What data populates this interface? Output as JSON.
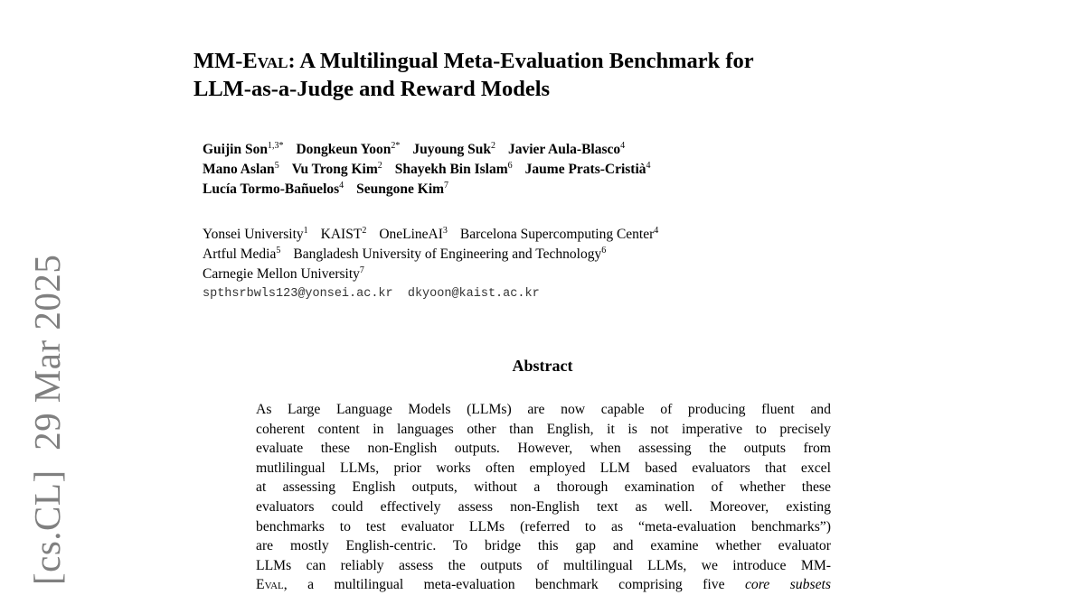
{
  "sidebar": {
    "arxiv_stamp": "[cs.CL]  29 Mar 2025"
  },
  "title": {
    "line1_prefix": "MM-",
    "line1_sc": "Eval",
    "line1_rest": ": A Multilingual Meta-Evaluation Benchmark for",
    "line2": "LLM-as-a-Judge and Reward Models"
  },
  "authors": [
    [
      {
        "name": "Guijin Son",
        "sup": "1,3*"
      },
      {
        "name": "Dongkeun Yoon",
        "sup": "2*"
      },
      {
        "name": "Juyoung Suk",
        "sup": "2"
      },
      {
        "name": "Javier Aula-Blasco",
        "sup": "4"
      }
    ],
    [
      {
        "name": "Mano Aslan",
        "sup": "5"
      },
      {
        "name": "Vu Trong Kim",
        "sup": "2"
      },
      {
        "name": "Shayekh Bin Islam",
        "sup": "6"
      },
      {
        "name": "Jaume Prats-Cristià",
        "sup": "4"
      }
    ],
    [
      {
        "name": "Lucía Tormo-Bañuelos",
        "sup": "4"
      },
      {
        "name": "Seungone Kim",
        "sup": "7"
      }
    ]
  ],
  "affiliations": [
    [
      {
        "name": "Yonsei University",
        "sup": "1"
      },
      {
        "name": "KAIST",
        "sup": "2"
      },
      {
        "name": "OneLineAI",
        "sup": "3"
      },
      {
        "name": "Barcelona Supercomputing Center",
        "sup": "4"
      }
    ],
    [
      {
        "name": "Artful Media",
        "sup": "5"
      },
      {
        "name": "Bangladesh University of Engineering and Technology",
        "sup": "6"
      }
    ],
    [
      {
        "name": "Carnegie Mellon University",
        "sup": "7"
      }
    ]
  ],
  "emails": [
    "spthsrbwls123@yonsei.ac.kr",
    "dkyoon@kaist.ac.kr"
  ],
  "abstract": {
    "heading": "Abstract",
    "lines": [
      "As Large Language Models (LLMs) are now capable of producing fluent and",
      "coherent content in languages other than English, it is not imperative to precisely",
      "evaluate these non-English outputs. However, when assessing the outputs from",
      "mutlilingual LLMs, prior works often employed LLM based evaluators that excel",
      "at assessing English outputs, without a thorough examination of whether these",
      "evaluators could effectively assess non-English text as well. Moreover, existing",
      "benchmarks to test evaluator LLMs (referred to as “meta-evaluation benchmarks”)",
      "are mostly English-centric. To bridge this gap and examine whether evaluator",
      "LLMs can reliably assess the outputs of multilingual LLMs, we introduce MM-"
    ],
    "last_line_sc": "Eval",
    "last_line_rest": ", a multilingual meta-evaluation benchmark comprising five ",
    "last_line_italic": "core subsets"
  }
}
